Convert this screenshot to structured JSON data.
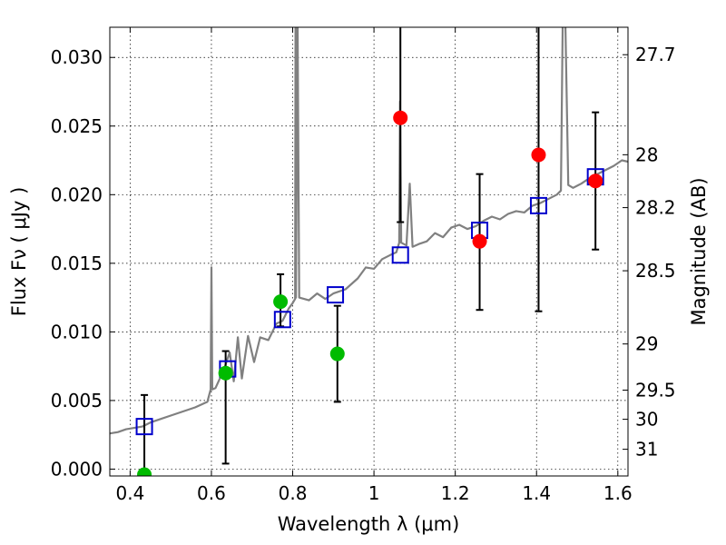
{
  "chart_data": {
    "type": "scatter",
    "xlabel": "Wavelength  λ (μm)",
    "ylabel": "Flux  Fν  ( μJy )",
    "y2label": "Magnitude (AB)",
    "xlim": [
      0.35,
      1.625
    ],
    "ylim": [
      -0.0005,
      0.0322
    ],
    "grid": true,
    "x_ticks": [
      0.4,
      0.6,
      0.8,
      1.0,
      1.2,
      1.4,
      1.6
    ],
    "x_tick_labels": [
      "0.4",
      "0.6",
      "0.8",
      "1",
      "1.2",
      "1.4",
      "1.6"
    ],
    "y_ticks": [
      0.0,
      0.005,
      0.01,
      0.015,
      0.02,
      0.025,
      0.03
    ],
    "y_tick_labels": [
      "0.000",
      "0.005",
      "0.010",
      "0.015",
      "0.020",
      "0.025",
      "0.030"
    ],
    "y2_ticks": [
      27.7,
      28,
      28.2,
      28.5,
      29,
      29.5,
      30,
      31
    ],
    "y2_tick_labels": [
      "27.7",
      "28",
      "28.2",
      "28.5",
      "29",
      "29.5",
      "30",
      "31"
    ],
    "colors": {
      "spectrum": "#808080",
      "model_box": "#0000cc",
      "detection": "#00bb00",
      "upper": "#ff0000",
      "errorbar": "#000000"
    },
    "spectrum": [
      [
        0.35,
        0.0026
      ],
      [
        0.37,
        0.0027
      ],
      [
        0.39,
        0.0029
      ],
      [
        0.41,
        0.003
      ],
      [
        0.43,
        0.0031
      ],
      [
        0.45,
        0.0034
      ],
      [
        0.47,
        0.0036
      ],
      [
        0.5,
        0.0039
      ],
      [
        0.53,
        0.0042
      ],
      [
        0.56,
        0.0045
      ],
      [
        0.59,
        0.0049
      ],
      [
        0.598,
        0.0058
      ],
      [
        0.6,
        0.0147
      ],
      [
        0.602,
        0.0058
      ],
      [
        0.61,
        0.0059
      ],
      [
        0.63,
        0.0072
      ],
      [
        0.645,
        0.0085
      ],
      [
        0.655,
        0.0064
      ],
      [
        0.665,
        0.0096
      ],
      [
        0.675,
        0.0066
      ],
      [
        0.69,
        0.0097
      ],
      [
        0.705,
        0.0078
      ],
      [
        0.72,
        0.0096
      ],
      [
        0.74,
        0.0094
      ],
      [
        0.76,
        0.0106
      ],
      [
        0.775,
        0.0108
      ],
      [
        0.79,
        0.0117
      ],
      [
        0.8,
        0.0121
      ],
      [
        0.806,
        0.0124
      ],
      [
        0.807,
        0.0345
      ],
      [
        0.808,
        0.0125
      ],
      [
        0.812,
        0.033
      ],
      [
        0.816,
        0.0125
      ],
      [
        0.84,
        0.0123
      ],
      [
        0.86,
        0.0128
      ],
      [
        0.88,
        0.0124
      ],
      [
        0.9,
        0.0128
      ],
      [
        0.93,
        0.0131
      ],
      [
        0.96,
        0.0139
      ],
      [
        0.98,
        0.0147
      ],
      [
        1.0,
        0.0146
      ],
      [
        1.02,
        0.0153
      ],
      [
        1.04,
        0.0156
      ],
      [
        1.055,
        0.0158
      ],
      [
        1.062,
        0.0165
      ],
      [
        1.064,
        0.0268
      ],
      [
        1.067,
        0.0165
      ],
      [
        1.08,
        0.0163
      ],
      [
        1.088,
        0.0208
      ],
      [
        1.095,
        0.0162
      ],
      [
        1.11,
        0.0164
      ],
      [
        1.13,
        0.0166
      ],
      [
        1.15,
        0.0172
      ],
      [
        1.17,
        0.0169
      ],
      [
        1.19,
        0.0176
      ],
      [
        1.21,
        0.0178
      ],
      [
        1.23,
        0.0175
      ],
      [
        1.25,
        0.0177
      ],
      [
        1.27,
        0.0181
      ],
      [
        1.29,
        0.0184
      ],
      [
        1.31,
        0.0182
      ],
      [
        1.33,
        0.0186
      ],
      [
        1.35,
        0.0188
      ],
      [
        1.37,
        0.0187
      ],
      [
        1.39,
        0.0192
      ],
      [
        1.41,
        0.0194
      ],
      [
        1.43,
        0.0197
      ],
      [
        1.45,
        0.02
      ],
      [
        1.46,
        0.0203
      ],
      [
        1.465,
        0.034
      ],
      [
        1.47,
        0.034
      ],
      [
        1.478,
        0.0207
      ],
      [
        1.49,
        0.0205
      ],
      [
        1.51,
        0.0208
      ],
      [
        1.53,
        0.0212
      ],
      [
        1.55,
        0.0215
      ],
      [
        1.57,
        0.0218
      ],
      [
        1.59,
        0.0221
      ],
      [
        1.61,
        0.0225
      ],
      [
        1.625,
        0.0224
      ]
    ],
    "model_boxes": [
      {
        "x": 0.435,
        "y": 0.0031
      },
      {
        "x": 0.64,
        "y": 0.0073
      },
      {
        "x": 0.775,
        "y": 0.0109
      },
      {
        "x": 0.905,
        "y": 0.0127
      },
      {
        "x": 1.065,
        "y": 0.0156
      },
      {
        "x": 1.26,
        "y": 0.0174
      },
      {
        "x": 1.405,
        "y": 0.0192
      },
      {
        "x": 1.545,
        "y": 0.0213
      }
    ],
    "detections": [
      {
        "x": 0.435,
        "y": -0.0004,
        "err_low": 0.0,
        "err_high": 0.0054
      },
      {
        "x": 0.635,
        "y": 0.007,
        "err_low": 0.0004,
        "err_high": 0.0086
      },
      {
        "x": 0.77,
        "y": 0.0122,
        "err_low": 0.0104,
        "err_high": 0.0142
      },
      {
        "x": 0.91,
        "y": 0.0084,
        "err_low": 0.0049,
        "err_high": 0.0119
      }
    ],
    "upper_points": [
      {
        "x": 1.065,
        "y": 0.0256,
        "err_low": 0.018,
        "err_high": 0.035
      },
      {
        "x": 1.26,
        "y": 0.0166,
        "err_low": 0.0116,
        "err_high": 0.0215
      },
      {
        "x": 1.405,
        "y": 0.0229,
        "err_low": 0.0115,
        "err_high": 0.035
      },
      {
        "x": 1.545,
        "y": 0.021,
        "err_low": 0.016,
        "err_high": 0.026
      }
    ]
  }
}
